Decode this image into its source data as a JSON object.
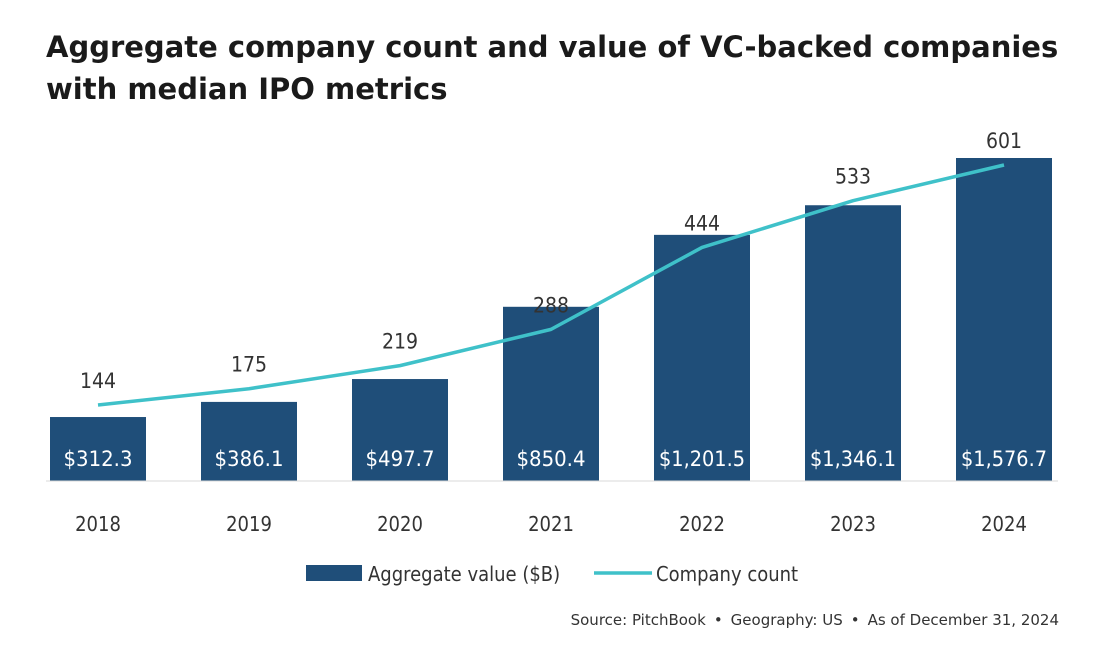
{
  "title": "Aggregate company count and value of VC-backed companies with median IPO metrics",
  "source": {
    "parts": [
      "Source: PitchBook",
      "Geography: US",
      "As of December 31, 2024"
    ],
    "separator": "•"
  },
  "colors": {
    "bar": "#1f4e79",
    "line": "#3fc1c9",
    "text": "#333333",
    "bar_label": "#ffffff"
  },
  "chart_data": {
    "type": "bar",
    "categories": [
      "2018",
      "2019",
      "2020",
      "2021",
      "2022",
      "2023",
      "2024"
    ],
    "series": [
      {
        "name": "Aggregate value ($B)",
        "type": "bar",
        "values": [
          312.3,
          386.1,
          497.7,
          850.4,
          1201.5,
          1346.1,
          1576.7
        ],
        "labels": [
          "$312.3",
          "$386.1",
          "$497.7",
          "$850.4",
          "$1,201.5",
          "$1,346.1",
          "$1,576.7"
        ]
      },
      {
        "name": "Company count",
        "type": "line",
        "values": [
          144,
          175,
          219,
          288,
          444,
          533,
          601
        ],
        "labels": [
          "144",
          "175",
          "219",
          "288",
          "444",
          "533",
          "601"
        ]
      }
    ],
    "legend": "bottom-center",
    "grid": false
  }
}
